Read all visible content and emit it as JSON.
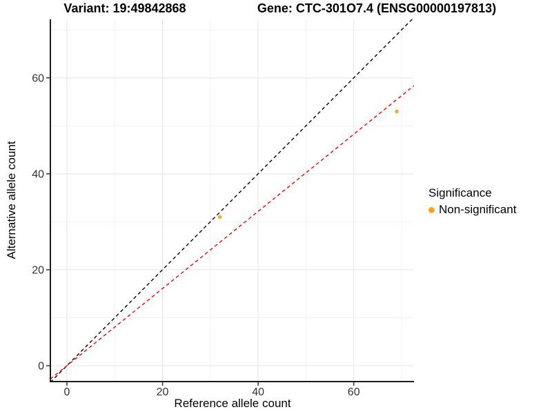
{
  "titles": {
    "variant": "Variant: 19:49842868",
    "gene": "Gene: CTC-301O7.4 (ENSG00000197813)"
  },
  "chart_data": {
    "type": "scatter",
    "xlabel": "Reference allele count",
    "ylabel": "Alternative allele count",
    "x_domain": [
      -3.46,
      72.6
    ],
    "y_domain": [
      -3.31,
      72.2
    ],
    "x_ticks_major": [
      0,
      20,
      40,
      60
    ],
    "x_ticks_minor": [
      10,
      30,
      50,
      70
    ],
    "y_ticks_major": [
      0,
      20,
      40,
      60
    ],
    "y_ticks_minor": [
      10,
      30,
      50,
      70
    ],
    "points": [
      {
        "x": 32,
        "y": 31,
        "series": "Non-significant"
      },
      {
        "x": 69,
        "y": 53,
        "series": "Non-significant"
      }
    ],
    "lines": [
      {
        "name": "identity-line",
        "slope": 1.0,
        "intercept": 0,
        "color": "#000000",
        "style": "dashed"
      },
      {
        "name": "fit-line",
        "slope": 0.804,
        "intercept": 0,
        "color": "#FF0000",
        "style": "dashed"
      }
    ],
    "legend": {
      "title": "Significance",
      "position": "right",
      "entries": [
        {
          "label": "Non-significant",
          "color": "#FFA425"
        }
      ]
    },
    "colors": {
      "point": "#FFA425",
      "grid_major": "#E5E5E5",
      "grid_minor": "#F2F2F2",
      "axis_line": "#1A1A1A",
      "tick_mark": "#333333",
      "tick_label": "#333333"
    }
  }
}
